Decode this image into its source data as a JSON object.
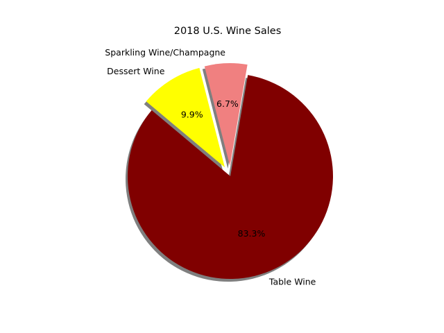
{
  "chart_data": {
    "type": "pie",
    "title": "2018 U.S. Wine Sales",
    "start_angle_deg": 140,
    "direction": "counterclockwise",
    "shadow": true,
    "slices": [
      {
        "name": "Table Wine",
        "value": 83.3,
        "label": "83.3%",
        "color": "#800000",
        "exploded": false
      },
      {
        "name": "Sparkling Wine/Champagne",
        "value": 6.7,
        "label": "6.7%",
        "color": "#f08080",
        "exploded": true
      },
      {
        "name": "Dessert Wine",
        "value": 9.9,
        "label": "9.9%",
        "color": "#ffff00",
        "exploded": true
      }
    ]
  }
}
